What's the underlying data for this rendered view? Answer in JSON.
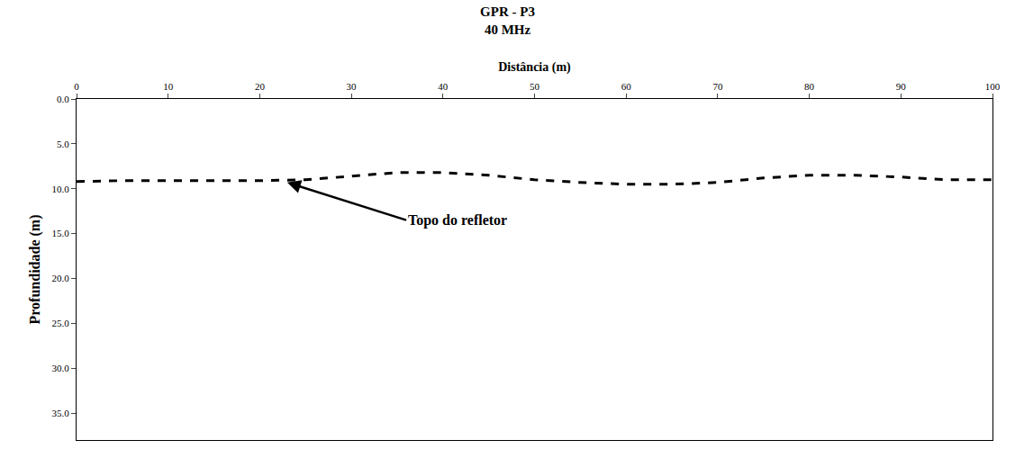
{
  "chart_data": {
    "type": "line",
    "title": "GPR - P3",
    "subtitle": "40 MHz",
    "x_label": "Distância (m)",
    "y_label": "Profundidade (m)",
    "x": [
      0,
      5,
      10,
      15,
      20,
      25,
      30,
      35,
      40,
      45,
      50,
      55,
      60,
      65,
      70,
      75,
      80,
      85,
      90,
      95,
      100
    ],
    "series": [
      {
        "name": "Topo do refletor",
        "color": "#000000",
        "line_style": "dashed",
        "values": [
          9.2,
          9.1,
          9.1,
          9.1,
          9.1,
          9.0,
          8.6,
          8.2,
          8.2,
          8.5,
          9.0,
          9.3,
          9.5,
          9.5,
          9.3,
          8.8,
          8.5,
          8.5,
          8.7,
          9.0,
          9.0
        ]
      }
    ],
    "annotations": [
      {
        "text": "Topo do refletor",
        "x": 23,
        "y": 9.3,
        "text_x": 36,
        "text_y": 13.5
      }
    ],
    "xlim": [
      0,
      100
    ],
    "xticks": [
      0,
      10,
      20,
      30,
      40,
      50,
      60,
      70,
      80,
      90,
      100
    ],
    "ylim": [
      0,
      38
    ],
    "yticks": [
      {
        "value": 0,
        "label": "0.0"
      },
      {
        "value": 5,
        "label": "5.0"
      },
      {
        "value": 10,
        "label": "10.0"
      },
      {
        "value": 15,
        "label": "15.0"
      },
      {
        "value": 20,
        "label": "20.0"
      },
      {
        "value": 25,
        "label": "25.0"
      },
      {
        "value": 30,
        "label": "30.0"
      },
      {
        "value": 35,
        "label": "35.0"
      }
    ],
    "grid": false
  }
}
